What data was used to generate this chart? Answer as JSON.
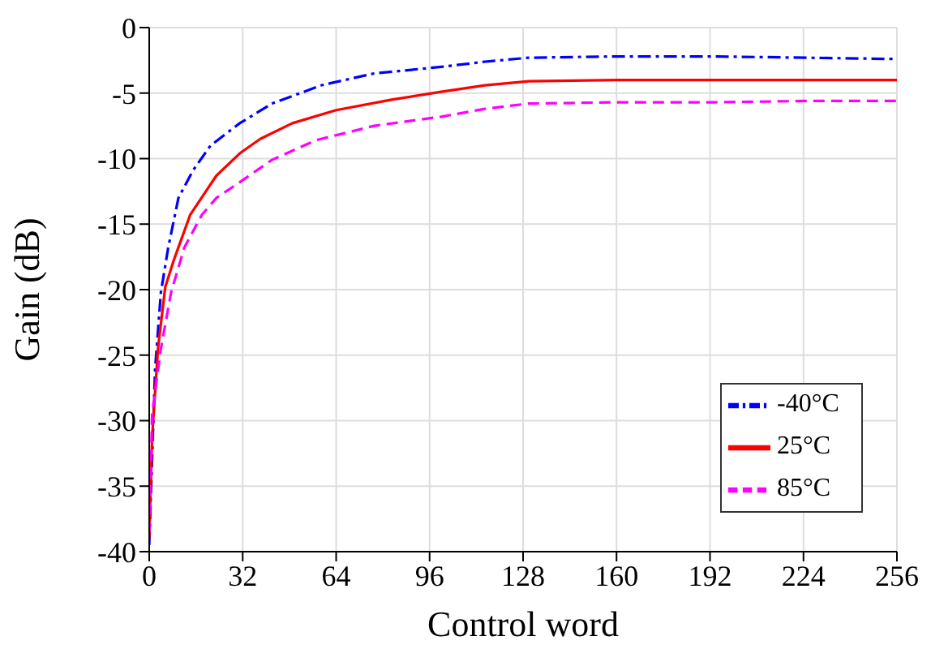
{
  "chart_data": {
    "type": "line",
    "xlabel": "Control word",
    "ylabel": "Gain (dB)",
    "xlim": [
      0,
      256
    ],
    "xticks": [
      0,
      32,
      64,
      96,
      128,
      160,
      192,
      224,
      256
    ],
    "ylim": [
      -40,
      0
    ],
    "yticks": [
      -40,
      -35,
      -30,
      -25,
      -20,
      -15,
      -10,
      -5,
      0
    ],
    "grid": true,
    "legend": "bottom right",
    "marker": "none",
    "series": [
      {
        "name": "-40°C",
        "color": "#0000ff",
        "line_style": "dashdot",
        "x": [
          0,
          1,
          2,
          4,
          6.5,
          10,
          15,
          21,
          31,
          42,
          59,
          77,
          100,
          115,
          130,
          160,
          193,
          225,
          256
        ],
        "values": [
          -39.5,
          -32.9,
          -26.1,
          -20.2,
          -16.8,
          -13,
          -10.9,
          -9,
          -7.3,
          -5.8,
          -4.4,
          -3.5,
          -3.0,
          -2.6,
          -2.3,
          -2.2,
          -2.2,
          -2.3,
          -2.4
        ]
      },
      {
        "name": "25°C",
        "color": "#ff0000",
        "line_style": "solid",
        "x": [
          0,
          1,
          3,
          5.5,
          8.5,
          14,
          23,
          31,
          38,
          49,
          64,
          83,
          100,
          115,
          130,
          160,
          193,
          225,
          256
        ],
        "values": [
          -39,
          -31.2,
          -24.5,
          -19.8,
          -17.7,
          -14.3,
          -11.3,
          -9.6,
          -8.5,
          -7.3,
          -6.3,
          -5.5,
          -4.9,
          -4.4,
          -4.1,
          -4.0,
          -4.0,
          -4.0,
          -4.0
        ]
      },
      {
        "name": "85°C",
        "color": "#ff00ff",
        "line_style": "dashed",
        "x": [
          0,
          1,
          4,
          7.5,
          12,
          18,
          23,
          31,
          42,
          57,
          77,
          100,
          115,
          130,
          160,
          193,
          225,
          256
        ],
        "values": [
          -38.5,
          -29.5,
          -24.5,
          -20.2,
          -16.8,
          -14.3,
          -13,
          -11.8,
          -10.1,
          -8.6,
          -7.5,
          -6.8,
          -6.2,
          -5.8,
          -5.7,
          -5.7,
          -5.6,
          -5.6
        ]
      }
    ]
  }
}
